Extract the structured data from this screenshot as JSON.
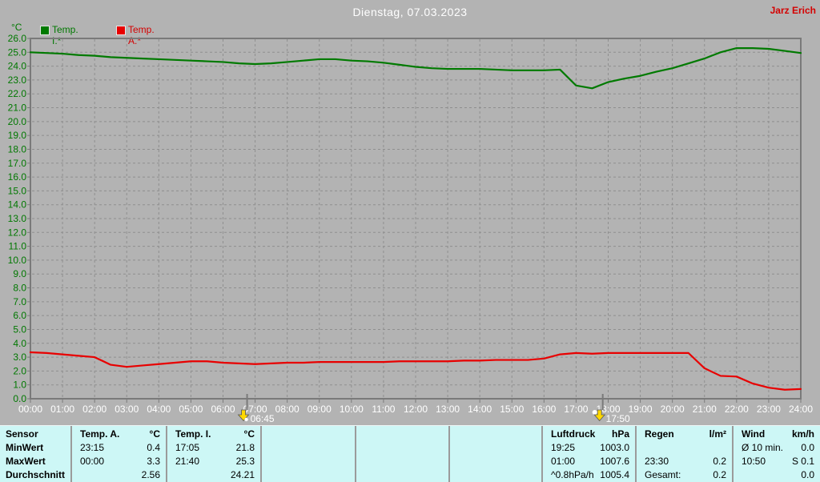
{
  "window": {
    "title": "Dienstag, 07.03.2023",
    "user": "Jarz Erich"
  },
  "legend": {
    "axis_unit": "°C",
    "series": [
      {
        "label": "Temp. I.*",
        "color": "#007a00"
      },
      {
        "label": "Temp. A.*",
        "color": "#e80000"
      }
    ]
  },
  "markers": [
    {
      "type": "sunrise",
      "time_label": "06:45",
      "hour": 6.75
    },
    {
      "type": "sunset",
      "time_label": "17:50",
      "hour": 17.83
    }
  ],
  "chart_data": {
    "type": "line",
    "title": "Dienstag, 07.03.2023",
    "ylabel": "°C",
    "xlabel": "",
    "ylim": [
      0,
      26
    ],
    "ytick_step": 1.0,
    "x_step_hours": 0.5,
    "grid": true,
    "legend_position": "top-left",
    "xtick_labels": [
      "00:00",
      "01:00",
      "02:00",
      "03:00",
      "04:00",
      "05:00",
      "06:00",
      "07:00",
      "08:00",
      "09:00",
      "10:00",
      "11:00",
      "12:00",
      "13:00",
      "14:00",
      "15:00",
      "16:00",
      "17:00",
      "18:00",
      "19:00",
      "20:00",
      "21:00",
      "22:00",
      "23:00",
      "24:00"
    ],
    "series": [
      {
        "name": "Temp. I.*",
        "color": "#007a00",
        "values": [
          25.0,
          24.95,
          24.9,
          24.8,
          24.75,
          24.65,
          24.6,
          24.55,
          24.5,
          24.45,
          24.4,
          24.35,
          24.3,
          24.2,
          24.15,
          24.2,
          24.3,
          24.4,
          24.5,
          24.5,
          24.4,
          24.35,
          24.25,
          24.1,
          23.95,
          23.85,
          23.8,
          23.8,
          23.8,
          23.75,
          23.7,
          23.7,
          23.7,
          23.75,
          22.6,
          22.4,
          22.85,
          23.1,
          23.3,
          23.6,
          23.85,
          24.2,
          24.55,
          25.0,
          25.3,
          25.3,
          25.25,
          25.1,
          24.95
        ]
      },
      {
        "name": "Temp. A.*",
        "color": "#e80000",
        "values": [
          3.35,
          3.3,
          3.2,
          3.1,
          3.0,
          2.45,
          2.3,
          2.4,
          2.5,
          2.6,
          2.7,
          2.7,
          2.6,
          2.55,
          2.5,
          2.55,
          2.6,
          2.6,
          2.65,
          2.65,
          2.65,
          2.65,
          2.65,
          2.7,
          2.7,
          2.7,
          2.7,
          2.75,
          2.75,
          2.8,
          2.8,
          2.8,
          2.9,
          3.2,
          3.3,
          3.25,
          3.3,
          3.3,
          3.3,
          3.3,
          3.3,
          3.3,
          2.2,
          1.65,
          1.6,
          1.1,
          0.8,
          0.65,
          0.7
        ]
      }
    ]
  },
  "stats_table": {
    "row_headers": [
      "Sensor",
      "MinWert",
      "MaxWert",
      "Durchschnitt"
    ],
    "columns": [
      {
        "name": "Temp. A.",
        "unit": "°C",
        "min": [
          "23:15",
          "0.4"
        ],
        "max": [
          "00:00",
          "3.3"
        ],
        "avg": [
          "",
          "2.56"
        ]
      },
      {
        "name": "Temp. I.",
        "unit": "°C",
        "min": [
          "17:05",
          "21.8"
        ],
        "max": [
          "21:40",
          "25.3"
        ],
        "avg": [
          "",
          "24.21"
        ]
      },
      {
        "empty": true
      },
      {
        "empty": true
      },
      {
        "empty": true
      },
      {
        "name": "Luftdruck",
        "unit": "hPa",
        "min": [
          "19:25",
          "1003.0"
        ],
        "max": [
          "01:00",
          "1007.6"
        ],
        "avg": [
          "^0.8hPa/h",
          "1005.4"
        ]
      },
      {
        "name": "Regen",
        "unit": "l/m²",
        "min": [
          "",
          ""
        ],
        "max": [
          "23:30",
          "0.2"
        ],
        "avg": [
          "Gesamt:",
          "0.2"
        ]
      },
      {
        "name": "Wind",
        "unit": "km/h",
        "min": [
          "Ø 10 min.",
          "0.0"
        ],
        "max": [
          "10:50",
          "S 0.1"
        ],
        "avg": [
          "",
          "0.0"
        ]
      }
    ]
  },
  "colors": {
    "background": "#b3b3b3",
    "plot_border": "#7a7a7a",
    "grid": "#8f8f8f",
    "x_labels": "#ffffff",
    "y_labels": "#007800",
    "table_bg": "#cdf7f6",
    "table_divider": "#9b9b9b",
    "marker": "#ffd800"
  }
}
